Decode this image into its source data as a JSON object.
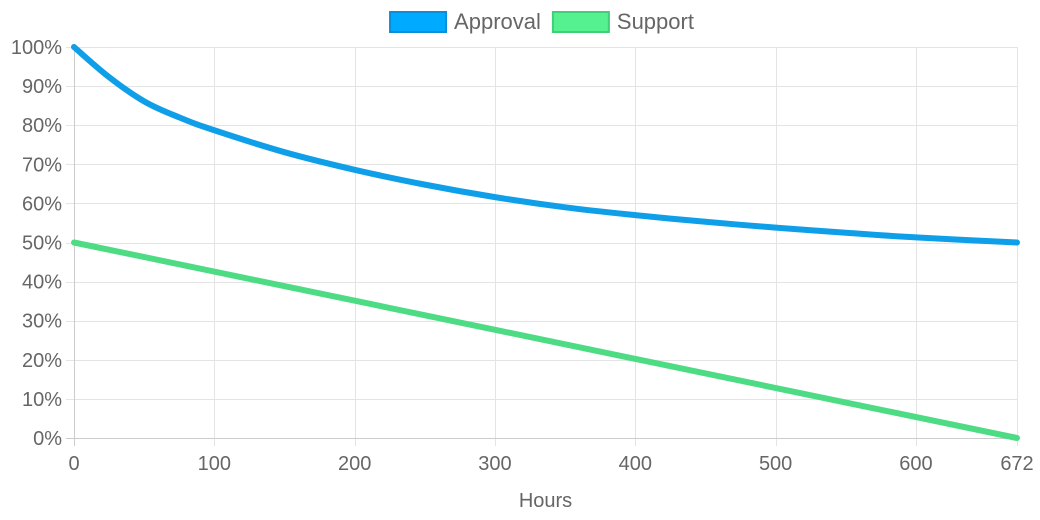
{
  "chart_data": {
    "type": "line",
    "xlabel": "Hours",
    "ylabel": "",
    "xlim": [
      0,
      672
    ],
    "ylim": [
      0,
      100
    ],
    "x_ticks": [
      0,
      100,
      200,
      300,
      400,
      500,
      600,
      672
    ],
    "y_ticks": [
      0,
      10,
      20,
      30,
      40,
      50,
      60,
      70,
      80,
      90,
      100
    ],
    "y_tick_format": "percent",
    "grid": true,
    "legend_position": "top-center",
    "series": [
      {
        "name": "Approval",
        "color": "#0f9fe8",
        "legend_fill": "#00aaff",
        "legend_stroke": "#0b8ed8",
        "x": [
          0,
          25,
          50,
          75,
          100,
          150,
          200,
          250,
          300,
          350,
          400,
          450,
          500,
          550,
          600,
          672
        ],
        "values": [
          100,
          92.3,
          86.1,
          82.0,
          78.7,
          73.1,
          68.6,
          64.8,
          61.6,
          59.0,
          57.0,
          55.3,
          53.8,
          52.5,
          51.3,
          50.0
        ]
      },
      {
        "name": "Support",
        "color": "#4ddc83",
        "legend_fill": "#55f08f",
        "legend_stroke": "#3fcf78",
        "x": [
          0,
          672
        ],
        "values": [
          50,
          0
        ]
      }
    ]
  }
}
